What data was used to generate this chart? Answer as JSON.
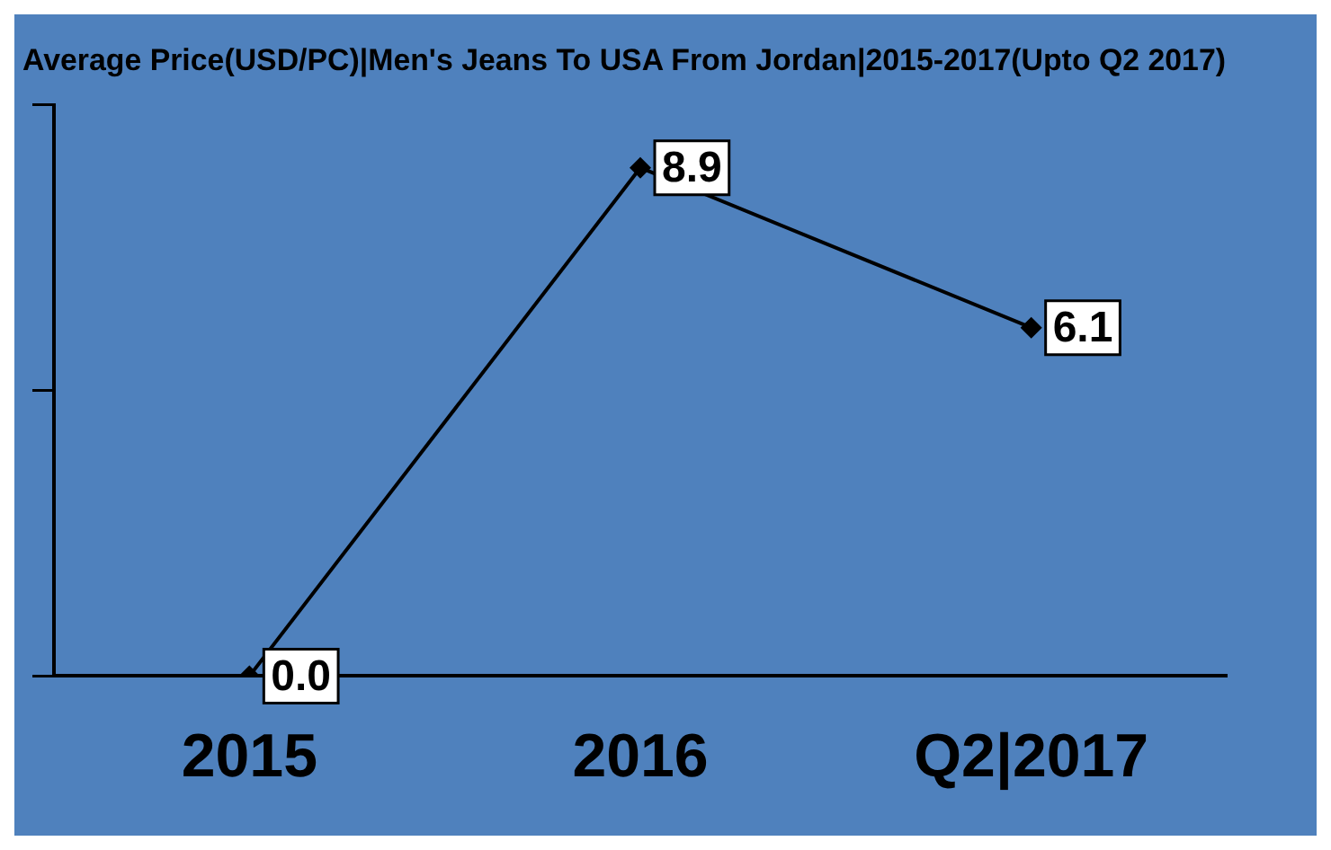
{
  "chart_data": {
    "type": "line",
    "title": "Average Price(USD/PC)|Men's Jeans To USA From Jordan|2015-2017(Upto Q2 2017)",
    "categories": [
      "2015",
      "2016",
      "Q2|2017"
    ],
    "series": [
      {
        "color": "#000000",
        "values": [
          0.0,
          8.9,
          6.1
        ],
        "value_labels": [
          "0.0",
          "8.9",
          "6.1"
        ]
      }
    ],
    "ylim": [
      0,
      10
    ],
    "yticks": [
      {
        "value": 0,
        "label": null
      },
      {
        "value": 5,
        "label": null
      },
      {
        "value": 10,
        "label": null
      }
    ],
    "tick_labels": "x",
    "grid": false,
    "legend": false,
    "marker": "diamond"
  }
}
